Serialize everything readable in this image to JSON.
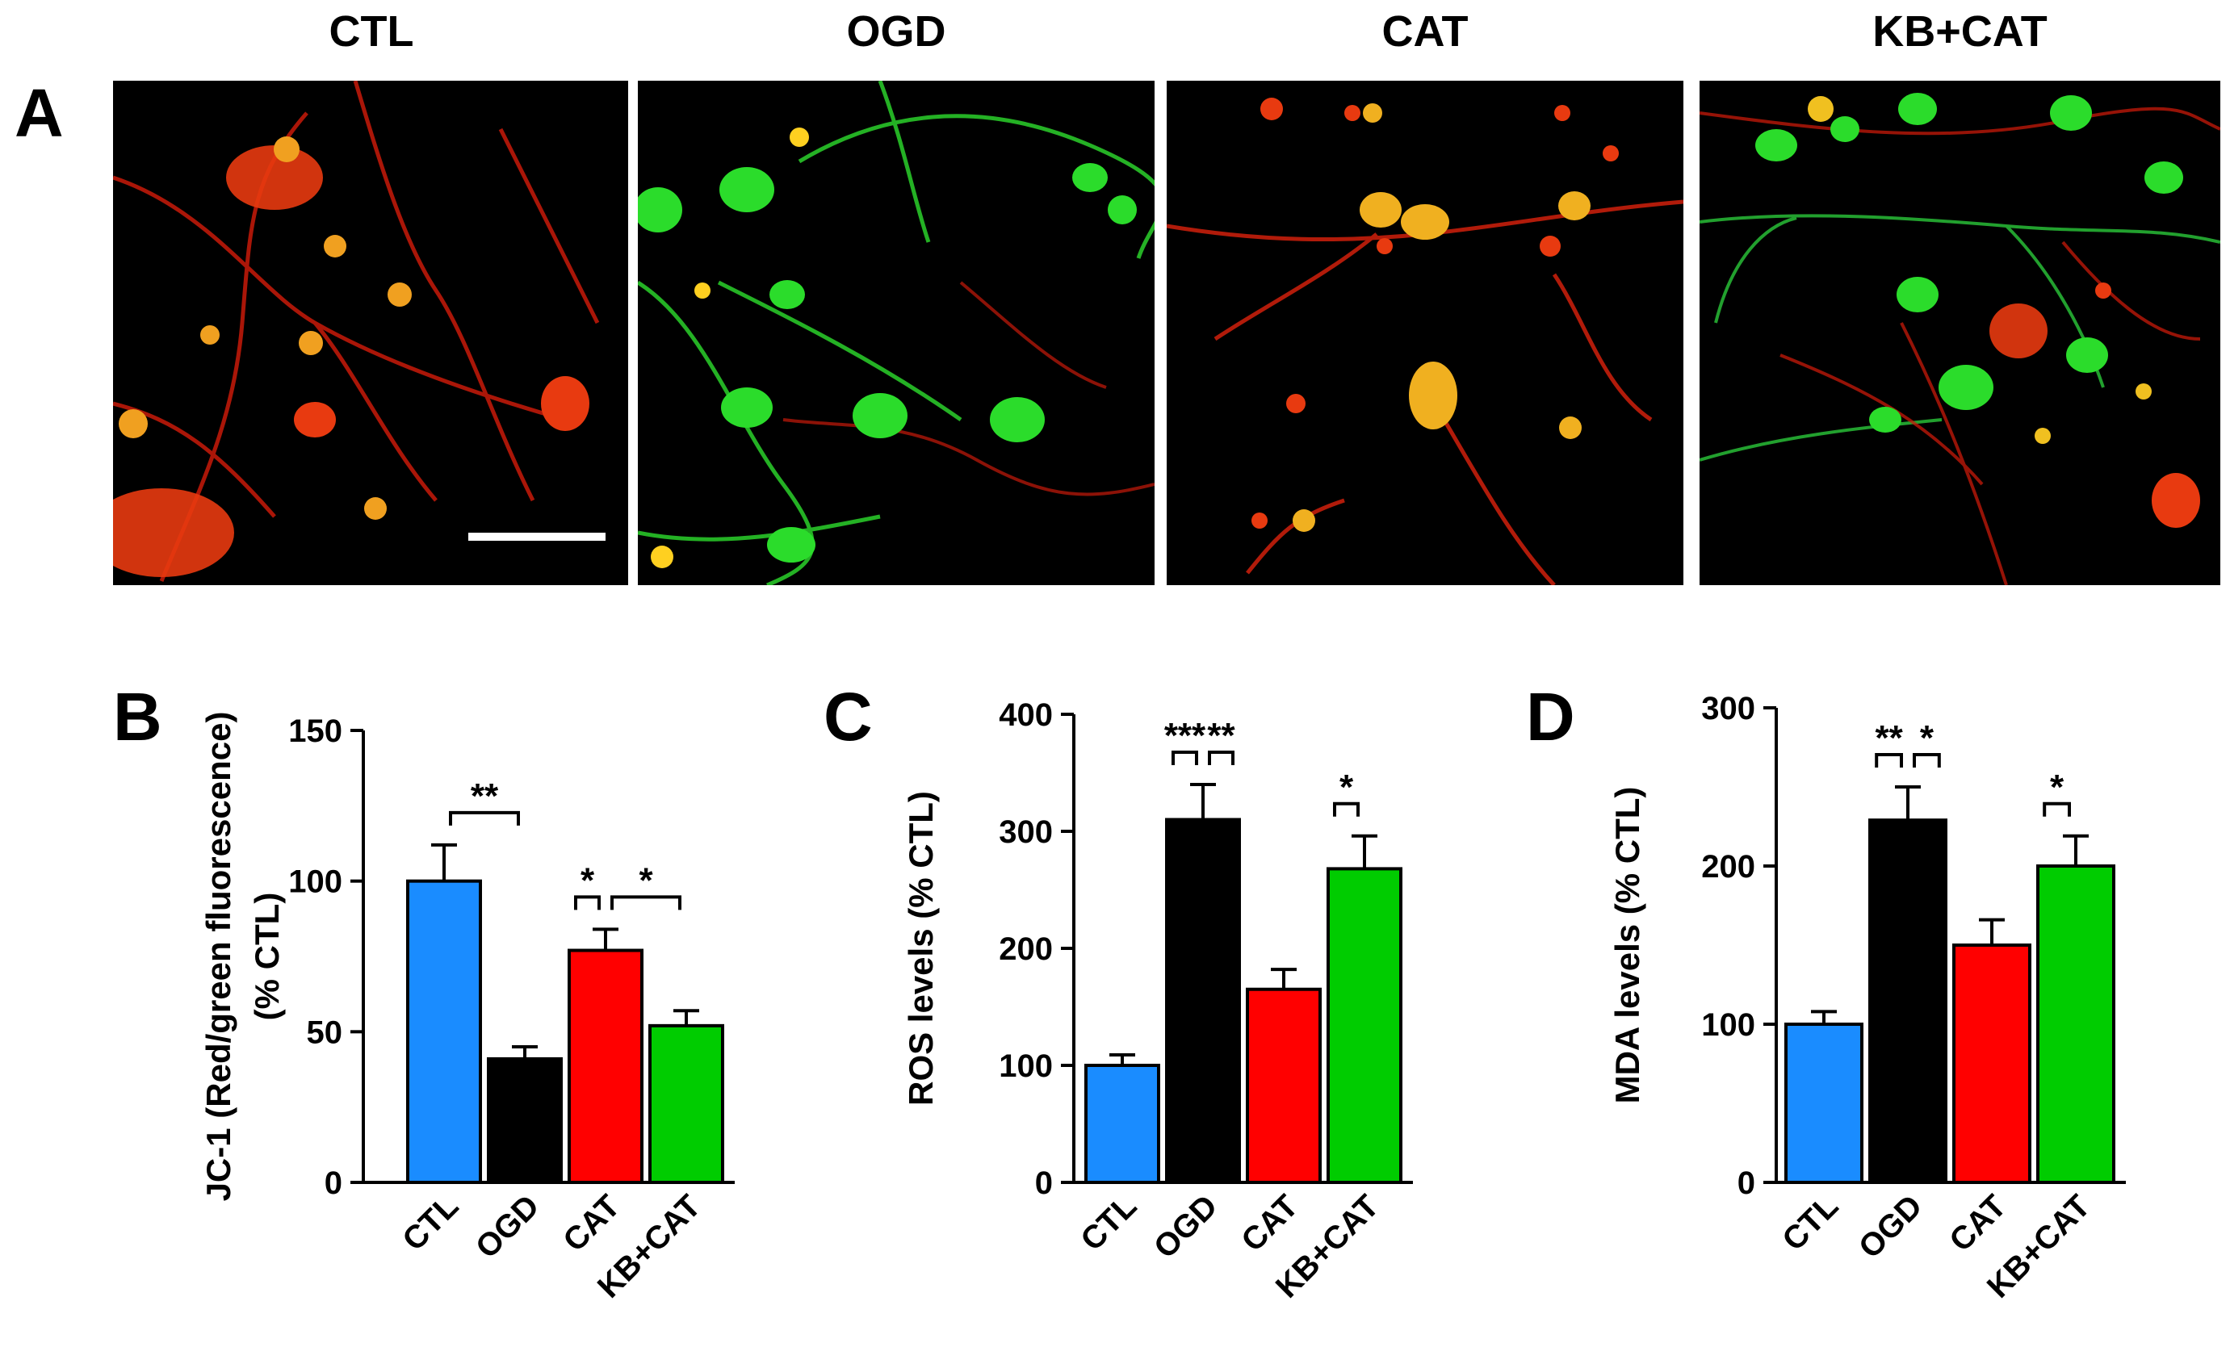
{
  "figure": {
    "panel_a": {
      "letter": "A",
      "images": [
        {
          "title": "CTL",
          "dominant_color": "#ff2a10",
          "secondary_color": "#ffa020"
        },
        {
          "title": "OGD",
          "dominant_color": "#22dd22",
          "secondary_color": "#ff2a10"
        },
        {
          "title": "CAT",
          "dominant_color": "#ff2a10",
          "secondary_color": "#ffb020"
        },
        {
          "title": "KB+CAT",
          "dominant_color": "#22cc33",
          "secondary_color": "#ff2a10"
        }
      ]
    },
    "bar_colors": [
      "#1a8cff",
      "#000000",
      "#ff0000",
      "#00cc00"
    ]
  },
  "chart_data": [
    {
      "type": "bar",
      "panel": "B",
      "categories": [
        "CTL",
        "OGD",
        "CAT",
        "KB+CAT"
      ],
      "values": [
        100,
        41,
        77,
        52
      ],
      "errors": [
        12,
        4,
        7,
        5
      ],
      "ylabel_line1": "JC-1 (Red/green fluorescence)",
      "ylabel_line2": "(% CTL)",
      "ylim": [
        0,
        150
      ],
      "yticks": [
        "0",
        "50",
        "100",
        "150"
      ],
      "significance": [
        {
          "from": 0,
          "to": 1,
          "label": "**"
        },
        {
          "from": 1.55,
          "to": 2,
          "label": "*"
        },
        {
          "from": 2,
          "to": 3,
          "label": "*"
        }
      ]
    },
    {
      "type": "bar",
      "panel": "C",
      "categories": [
        "CTL",
        "OGD",
        "CAT",
        "KB+CAT"
      ],
      "values": [
        100,
        310,
        165,
        268
      ],
      "errors": [
        9,
        30,
        17,
        28
      ],
      "ylabel_line1": "ROS levels (% CTL)",
      "ylabel_line2": "",
      "ylim": [
        0,
        400
      ],
      "yticks": [
        "0",
        "100",
        "200",
        "300",
        "400"
      ],
      "significance": [
        {
          "from": 0.55,
          "to": 1,
          "label": "***"
        },
        {
          "from": 1,
          "to": 1.45,
          "label": "**"
        },
        {
          "from": 2.55,
          "to": 3,
          "label": "*"
        }
      ]
    },
    {
      "type": "bar",
      "panel": "D",
      "categories": [
        "CTL",
        "OGD",
        "CAT",
        "KB+CAT"
      ],
      "values": [
        100,
        229,
        150,
        200
      ],
      "errors": [
        8,
        21,
        16,
        19
      ],
      "ylabel_line1": "MDA levels (% CTL)",
      "ylabel_line2": "",
      "ylim": [
        0,
        300
      ],
      "yticks": [
        "0",
        "100",
        "200",
        "300"
      ],
      "significance": [
        {
          "from": 0.55,
          "to": 1,
          "label": "**"
        },
        {
          "from": 1,
          "to": 1.45,
          "label": "*"
        },
        {
          "from": 2.55,
          "to": 3,
          "label": "*"
        }
      ]
    }
  ]
}
